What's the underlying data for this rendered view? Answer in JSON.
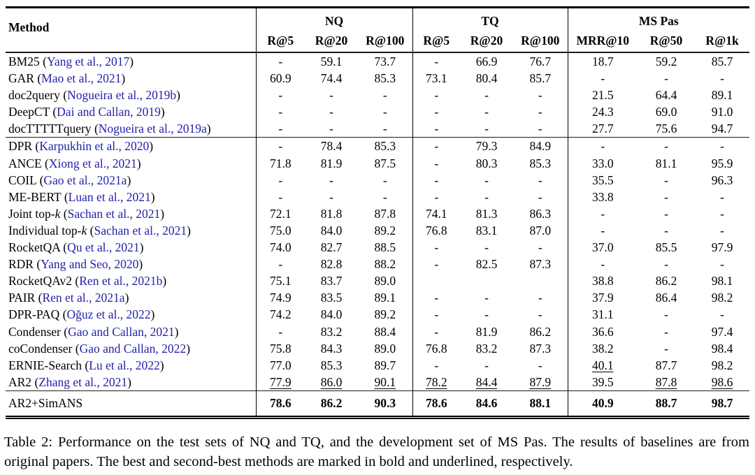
{
  "table": {
    "method_header": "Method",
    "groups": [
      {
        "label": "NQ",
        "columns": [
          "R@5",
          "R@20",
          "R@100"
        ]
      },
      {
        "label": "TQ",
        "columns": [
          "R@5",
          "R@20",
          "R@100"
        ]
      },
      {
        "label": "MS Pas",
        "columns": [
          "MRR@10",
          "R@50",
          "R@1k"
        ]
      }
    ],
    "rows": [
      {
        "name": "BM25",
        "cite": "Yang et al., 2017",
        "values": [
          "-",
          "59.1",
          "73.7",
          "-",
          "66.9",
          "76.7",
          "18.7",
          "59.2",
          "85.7"
        ]
      },
      {
        "name": "GAR",
        "cite": "Mao et al., 2021",
        "values": [
          "60.9",
          "74.4",
          "85.3",
          "73.1",
          "80.4",
          "85.7",
          "-",
          "-",
          "-"
        ]
      },
      {
        "name": "doc2query",
        "cite": "Nogueira et al., 2019b",
        "values": [
          "-",
          "-",
          "-",
          "-",
          "-",
          "-",
          "21.5",
          "64.4",
          "89.1"
        ]
      },
      {
        "name": "DeepCT",
        "cite": "Dai and Callan, 2019",
        "values": [
          "-",
          "-",
          "-",
          "-",
          "-",
          "-",
          "24.3",
          "69.0",
          "91.0"
        ]
      },
      {
        "name": "docTTTTTquery",
        "cite": "Nogueira et al., 2019a",
        "values": [
          "-",
          "-",
          "-",
          "-",
          "-",
          "-",
          "27.7",
          "75.6",
          "94.7"
        ]
      },
      {
        "name": "DPR",
        "cite": "Karpukhin et al., 2020",
        "rule_above": true,
        "values": [
          "-",
          "78.4",
          "85.3",
          "-",
          "79.3",
          "84.9",
          "-",
          "-",
          "-"
        ]
      },
      {
        "name": "ANCE",
        "cite": "Xiong et al., 2021",
        "values": [
          "71.8",
          "81.9",
          "87.5",
          "-",
          "80.3",
          "85.3",
          "33.0",
          "81.1",
          "95.9"
        ]
      },
      {
        "name": "COIL",
        "cite": "Gao et al., 2021a",
        "values": [
          "-",
          "-",
          "-",
          "-",
          "-",
          "-",
          "35.5",
          "-",
          "96.3"
        ]
      },
      {
        "name": "ME-BERT",
        "cite": "Luan et al., 2021",
        "values": [
          "-",
          "-",
          "-",
          "-",
          "-",
          "-",
          "33.8",
          "-",
          "-"
        ]
      },
      {
        "name": "Joint top-",
        "italic_suffix": "k",
        "cite": "Sachan et al., 2021",
        "values": [
          "72.1",
          "81.8",
          "87.8",
          "74.1",
          "81.3",
          "86.3",
          "-",
          "-",
          "-"
        ]
      },
      {
        "name": "Individual top-",
        "italic_suffix": "k",
        "cite": "Sachan et al., 2021",
        "values": [
          "75.0",
          "84.0",
          "89.2",
          "76.8",
          "83.1",
          "87.0",
          "-",
          "-",
          "-"
        ]
      },
      {
        "name": "RocketQA",
        "cite": "Qu et al., 2021",
        "values": [
          "74.0",
          "82.7",
          "88.5",
          "-",
          "-",
          "-",
          "37.0",
          "85.5",
          "97.9"
        ]
      },
      {
        "name": "RDR",
        "cite": "Yang and Seo, 2020",
        "values": [
          "-",
          "82.8",
          "88.2",
          "-",
          "82.5",
          "87.3",
          "-",
          "-",
          "-"
        ]
      },
      {
        "name": "RocketQAv2",
        "cite": "Ren et al., 2021b",
        "values": [
          "75.1",
          "83.7",
          "89.0",
          "",
          "",
          "",
          "38.8",
          "86.2",
          "98.1"
        ]
      },
      {
        "name": "PAIR",
        "cite": "Ren et al., 2021a",
        "values": [
          "74.9",
          "83.5",
          "89.1",
          "-",
          "-",
          "-",
          "37.9",
          "86.4",
          "98.2"
        ]
      },
      {
        "name": "DPR-PAQ",
        "cite": "Oğuz et al., 2022",
        "values": [
          "74.2",
          "84.0",
          "89.2",
          "-",
          "-",
          "-",
          "31.1",
          "-",
          "-"
        ]
      },
      {
        "name": "Condenser",
        "cite": "Gao and Callan, 2021",
        "values": [
          "-",
          "83.2",
          "88.4",
          "-",
          "81.9",
          "86.2",
          "36.6",
          "-",
          "97.4"
        ]
      },
      {
        "name": "coCondenser",
        "cite": "Gao and Callan, 2022",
        "values": [
          "75.8",
          "84.3",
          "89.0",
          "76.8",
          "83.2",
          "87.3",
          "38.2",
          "-",
          "98.4"
        ]
      },
      {
        "name": "ERNIE-Search",
        "cite": "Lu et al., 2022",
        "underline": [
          6
        ],
        "values": [
          "77.0",
          "85.3",
          "89.7",
          "-",
          "-",
          "-",
          "40.1",
          "87.7",
          "98.2"
        ]
      },
      {
        "name": "AR2",
        "cite": "Zhang et al., 2021",
        "underline": [
          0,
          1,
          2,
          3,
          4,
          5,
          7,
          8
        ],
        "values": [
          "77.9",
          "86.0",
          "90.1",
          "78.2",
          "84.4",
          "87.9",
          "39.5",
          "87.8",
          "98.6"
        ]
      },
      {
        "name": "AR2+SimANS",
        "cite": null,
        "rule_above": true,
        "bold_values": true,
        "values": [
          "78.6",
          "86.2",
          "90.3",
          "78.6",
          "84.6",
          "88.1",
          "40.9",
          "88.7",
          "98.7"
        ]
      }
    ]
  },
  "caption": {
    "text": "Table 2: Performance on the test sets of NQ and TQ, and the development set of MS Pas. The results of baselines are from original papers. The best and second-best methods are marked in bold and underlined, respectively."
  },
  "colors": {
    "citation_blue": "#2222aa",
    "rule_black": "#000000",
    "text": "#000000",
    "background": "#ffffff"
  }
}
